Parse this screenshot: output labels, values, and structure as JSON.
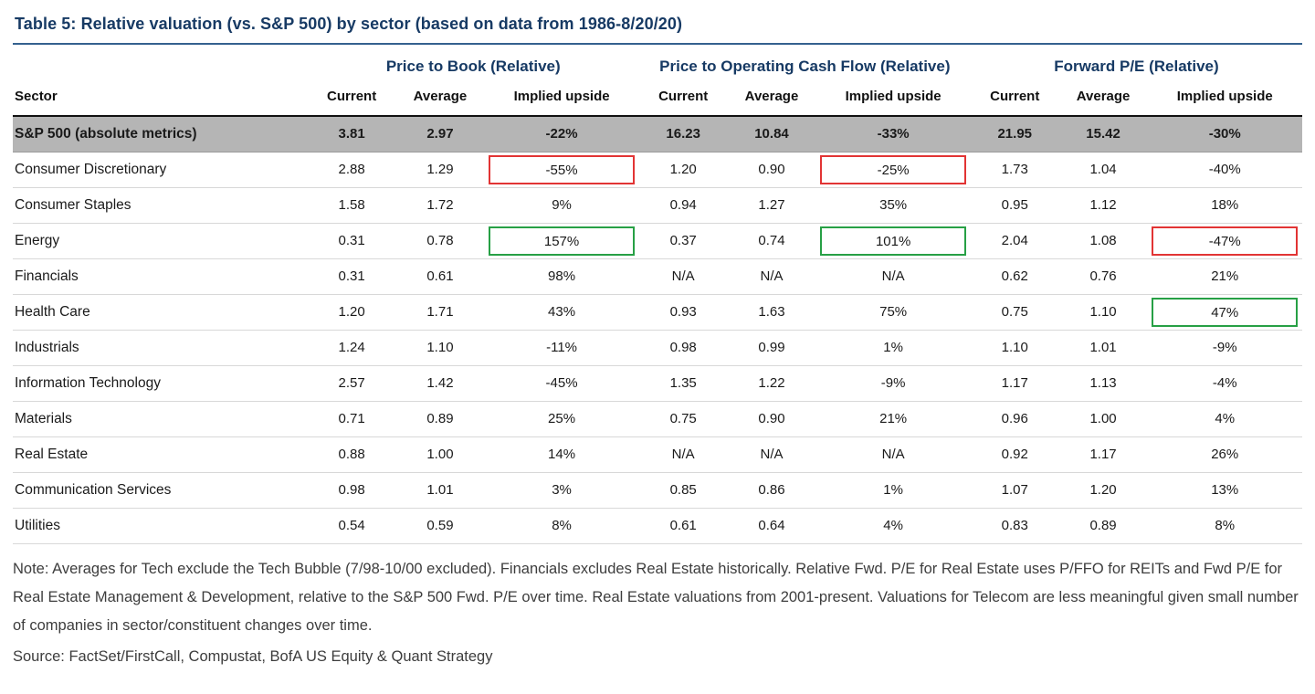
{
  "title": "Table 5: Relative valuation (vs. S&P 500) by sector (based on data from 1986-8/20/20)",
  "colors": {
    "title_navy": "#173a64",
    "title_rule_blue": "#35618f",
    "header_line_black": "#111111",
    "sp500_row_gray": "#b5b5b5",
    "highlight_red": "#e23434",
    "highlight_green": "#27a045"
  },
  "chart_data": {
    "type": "table",
    "title": "Table 5: Relative valuation (vs. S&P 500) by sector (based on data from 1986-8/20/20)",
    "column_groups": [
      "Price to Book (Relative)",
      "Price to Operating Cash Flow (Relative)",
      "Forward P/E (Relative)"
    ],
    "sector_header": "Sector",
    "sub_headers": [
      "Current",
      "Average",
      "Implied upside"
    ],
    "rows": [
      {
        "sector": "S&P 500 (absolute metrics)",
        "emphasis": true,
        "values": [
          "3.81",
          "2.97",
          "-22%",
          "16.23",
          "10.84",
          "-33%",
          "21.95",
          "15.42",
          "-30%"
        ]
      },
      {
        "sector": "Consumer Discretionary",
        "values": [
          "2.88",
          "1.29",
          "-55%",
          "1.20",
          "0.90",
          "-25%",
          "1.73",
          "1.04",
          "-40%"
        ],
        "highlights": {
          "2": "red",
          "5": "red"
        }
      },
      {
        "sector": "Consumer Staples",
        "values": [
          "1.58",
          "1.72",
          "9%",
          "0.94",
          "1.27",
          "35%",
          "0.95",
          "1.12",
          "18%"
        ]
      },
      {
        "sector": "Energy",
        "values": [
          "0.31",
          "0.78",
          "157%",
          "0.37",
          "0.74",
          "101%",
          "2.04",
          "1.08",
          "-47%"
        ],
        "highlights": {
          "2": "green",
          "5": "green",
          "8": "red"
        }
      },
      {
        "sector": "Financials",
        "values": [
          "0.31",
          "0.61",
          "98%",
          "N/A",
          "N/A",
          "N/A",
          "0.62",
          "0.76",
          "21%"
        ]
      },
      {
        "sector": "Health Care",
        "values": [
          "1.20",
          "1.71",
          "43%",
          "0.93",
          "1.63",
          "75%",
          "0.75",
          "1.10",
          "47%"
        ],
        "highlights": {
          "8": "green"
        }
      },
      {
        "sector": "Industrials",
        "values": [
          "1.24",
          "1.10",
          "-11%",
          "0.98",
          "0.99",
          "1%",
          "1.10",
          "1.01",
          "-9%"
        ]
      },
      {
        "sector": "Information Technology",
        "values": [
          "2.57",
          "1.42",
          "-45%",
          "1.35",
          "1.22",
          "-9%",
          "1.17",
          "1.13",
          "-4%"
        ]
      },
      {
        "sector": "Materials",
        "values": [
          "0.71",
          "0.89",
          "25%",
          "0.75",
          "0.90",
          "21%",
          "0.96",
          "1.00",
          "4%"
        ]
      },
      {
        "sector": "Real Estate",
        "values": [
          "0.88",
          "1.00",
          "14%",
          "N/A",
          "N/A",
          "N/A",
          "0.92",
          "1.17",
          "26%"
        ]
      },
      {
        "sector": "Communication Services",
        "values": [
          "0.98",
          "1.01",
          "3%",
          "0.85",
          "0.86",
          "1%",
          "1.07",
          "1.20",
          "13%"
        ]
      },
      {
        "sector": "Utilities",
        "values": [
          "0.54",
          "0.59",
          "8%",
          "0.61",
          "0.64",
          "4%",
          "0.83",
          "0.89",
          "8%"
        ]
      }
    ]
  },
  "note": "Note: Averages for Tech exclude the Tech Bubble (7/98-10/00 excluded). Financials excludes Real Estate historically. Relative Fwd. P/E for Real Estate uses P/FFO for REITs and Fwd P/E for Real Estate Management & Development, relative to the S&P 500 Fwd. P/E over time. Real Estate valuations from 2001-present. Valuations for Telecom are less meaningful given small number of companies in sector/constituent changes over time.",
  "source": "Source: FactSet/FirstCall, Compustat, BofA US Equity & Quant Strategy"
}
